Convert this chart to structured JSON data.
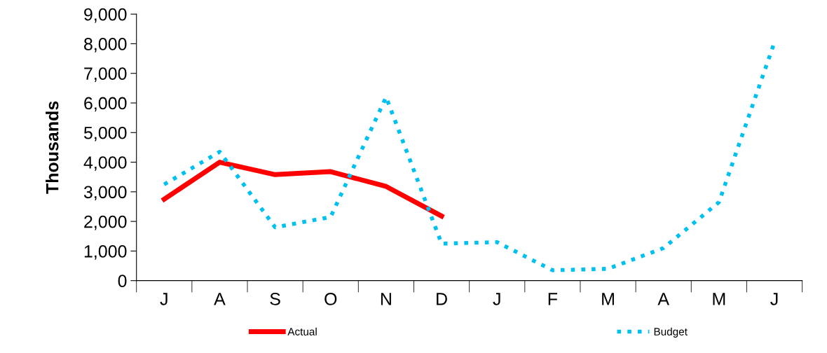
{
  "chart_data": {
    "type": "line",
    "ylabel": "Thousands",
    "categories": [
      "J",
      "A",
      "S",
      "O",
      "N",
      "D",
      "J",
      "F",
      "M",
      "A",
      "M",
      "J"
    ],
    "series": [
      {
        "name": "Actual",
        "color": "#ff0000",
        "line_style": "solid",
        "values": [
          2750,
          4000,
          3580,
          3680,
          3180,
          2180,
          null,
          null,
          null,
          null,
          null,
          null
        ]
      },
      {
        "name": "Budget",
        "color": "#00c0f0",
        "line_style": "dotted",
        "values": [
          3250,
          4350,
          1800,
          2150,
          6200,
          1250,
          1300,
          350,
          400,
          1100,
          2650,
          8050
        ]
      }
    ],
    "ylim": [
      0,
      9000
    ],
    "yticks": [
      {
        "value": 0,
        "label": "0"
      },
      {
        "value": 1000,
        "label": "1,000"
      },
      {
        "value": 2000,
        "label": "2,000"
      },
      {
        "value": 3000,
        "label": "3,000"
      },
      {
        "value": 4000,
        "label": "4,000"
      },
      {
        "value": 5000,
        "label": "5,000"
      },
      {
        "value": 6000,
        "label": "6,000"
      },
      {
        "value": 7000,
        "label": "7,000"
      },
      {
        "value": 8000,
        "label": "8,000"
      },
      {
        "value": 9000,
        "label": "9,000"
      }
    ],
    "grid": false,
    "legend": "bottom",
    "marker": "none"
  }
}
